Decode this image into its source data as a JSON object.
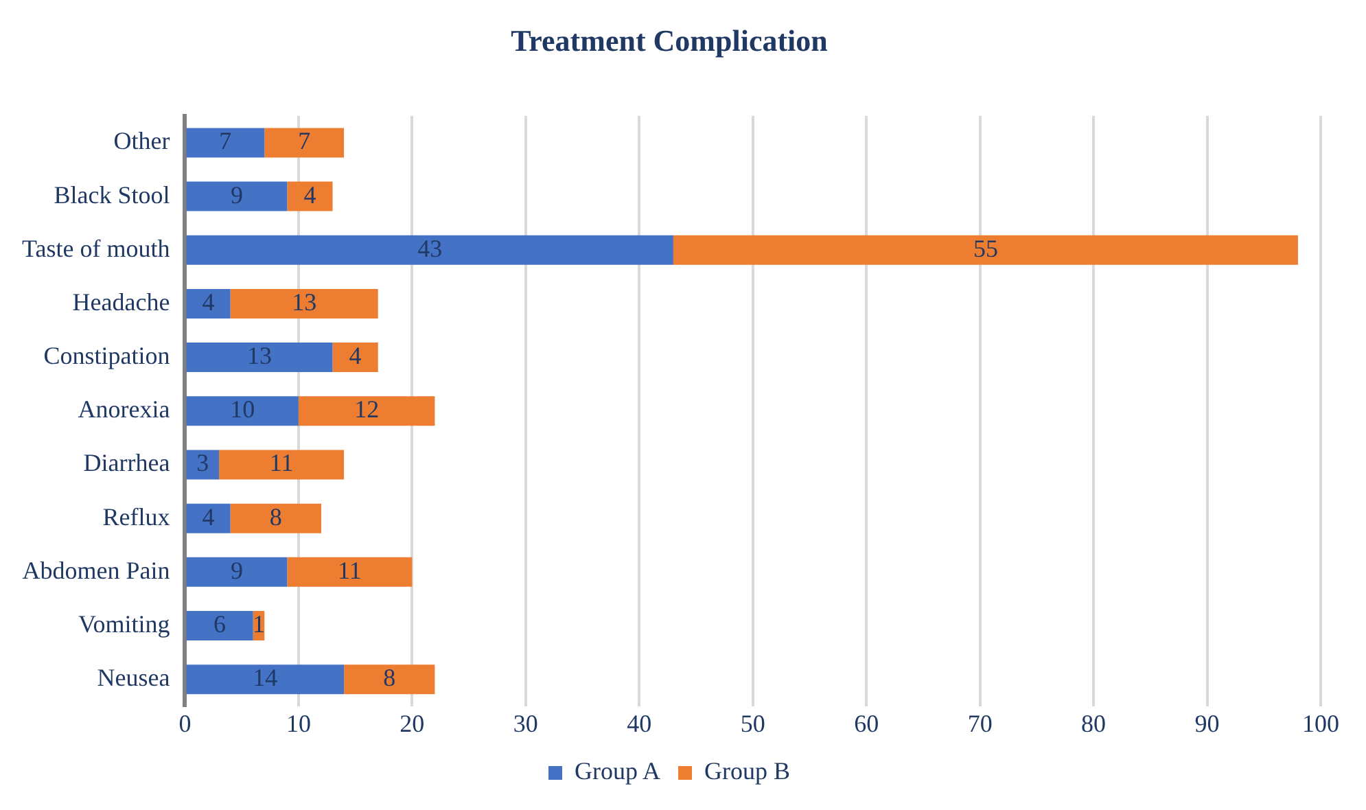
{
  "chart_data": {
    "type": "bar",
    "title": "Treatment Complication",
    "orientation": "horizontal",
    "stacked": true,
    "categories": [
      "Other",
      "Black Stool",
      "Taste of mouth",
      "Headache",
      "Constipation",
      "Anorexia",
      "Diarrhea",
      "Reflux",
      "Abdomen Pain",
      "Vomiting",
      "Neusea"
    ],
    "series": [
      {
        "name": "Group A",
        "color": "#4472c4",
        "values": [
          7,
          9,
          43,
          4,
          13,
          10,
          3,
          4,
          9,
          6,
          14
        ]
      },
      {
        "name": "Group B",
        "color": "#ed7d31",
        "values": [
          7,
          4,
          55,
          13,
          4,
          12,
          11,
          8,
          11,
          1,
          8
        ]
      }
    ],
    "xlim": [
      0,
      100
    ],
    "xticks": [
      0,
      10,
      20,
      30,
      40,
      50,
      60,
      70,
      80,
      90,
      100
    ],
    "grid": "x",
    "legend": "bottom",
    "data_labels": true
  }
}
